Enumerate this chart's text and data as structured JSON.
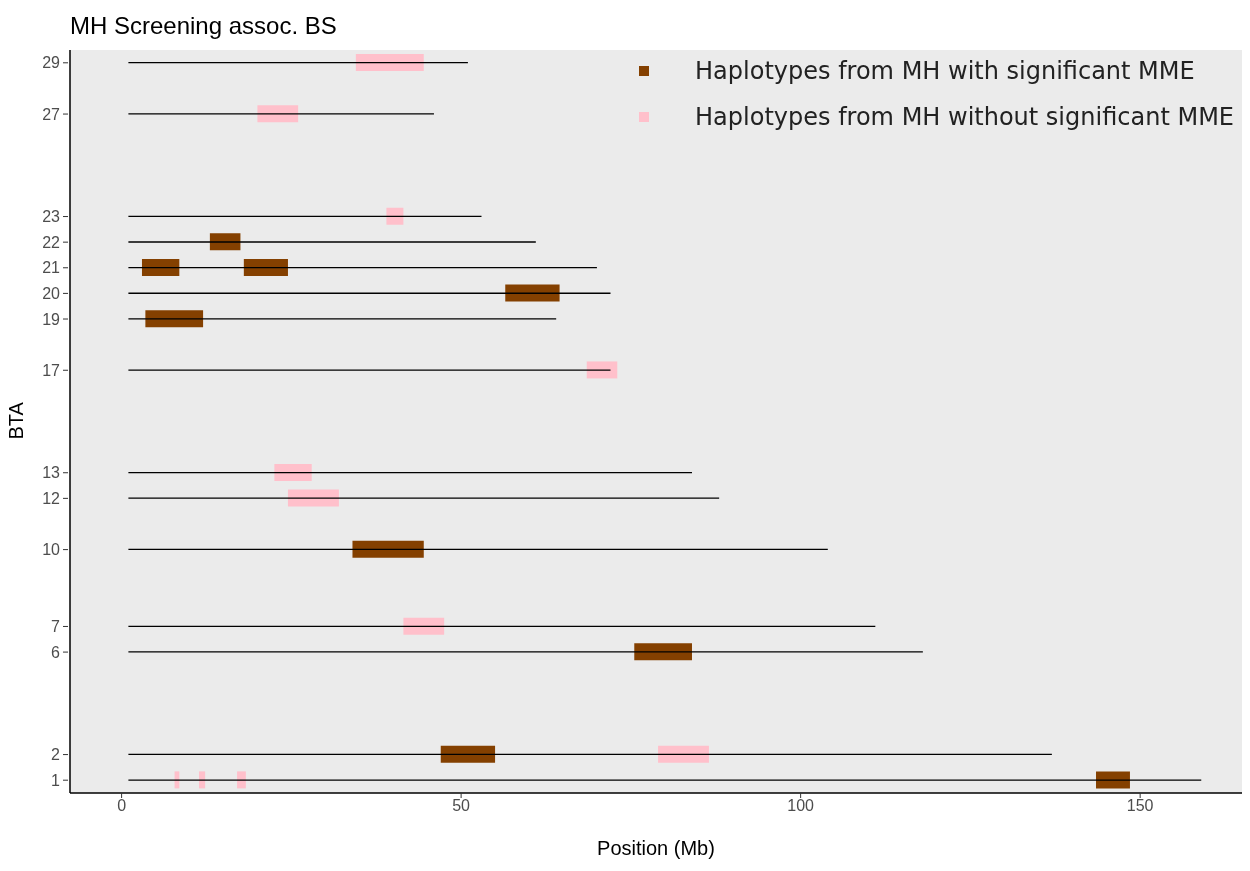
{
  "chart_data": {
    "type": "bar",
    "orientation": "horizontal",
    "title": "MH Screening assoc. BS",
    "xlabel": "Position (Mb)",
    "ylabel": "BTA",
    "categories": [
      "29",
      null,
      "27",
      null,
      null,
      null,
      "23",
      "22",
      "21",
      "20",
      "19",
      null,
      "17",
      null,
      null,
      null,
      "13",
      "12",
      null,
      "10",
      null,
      null,
      "7",
      "6",
      null,
      null,
      null,
      "2",
      "1"
    ],
    "series": [
      {
        "color": "#000000",
        "base": [
          1,
          null,
          1,
          null,
          null,
          null,
          1,
          1,
          1,
          1,
          1,
          null,
          1,
          null,
          null,
          null,
          1,
          1,
          null,
          1,
          null,
          null,
          1,
          1,
          null,
          null,
          null,
          1,
          1
        ],
        "values": [
          50,
          null,
          45,
          null,
          null,
          null,
          52,
          60,
          69,
          71,
          63,
          null,
          71,
          null,
          null,
          null,
          83,
          87,
          null,
          103,
          null,
          null,
          110,
          117,
          null,
          null,
          null,
          136,
          158
        ]
      },
      {
        "name": "Haplotypes from MH with significant MME",
        "color": "#844000",
        "base": [
          null,
          null,
          null,
          null,
          null,
          null,
          null,
          13,
          3,
          56.5,
          3.5,
          null,
          null,
          null,
          null,
          null,
          null,
          null,
          null,
          34,
          null,
          null,
          null,
          75.5,
          null,
          null,
          null,
          47,
          143.5
        ],
        "values": [
          null,
          null,
          null,
          null,
          null,
          null,
          null,
          4.5,
          5.5,
          8,
          8.5,
          null,
          null,
          null,
          null,
          null,
          null,
          null,
          null,
          10.5,
          null,
          null,
          null,
          8.5,
          null,
          null,
          null,
          8,
          5
        ]
      },
      {
        "color": "#844000",
        "base": [
          null,
          null,
          null,
          null,
          null,
          null,
          null,
          null,
          18,
          null,
          null,
          null,
          null,
          null,
          null,
          null,
          null,
          null,
          null,
          null,
          null,
          null,
          null,
          null,
          null,
          null,
          null,
          null,
          null
        ],
        "values": [
          null,
          null,
          null,
          null,
          null,
          null,
          null,
          null,
          6.5,
          null,
          null,
          null,
          null,
          null,
          null,
          null,
          null,
          null,
          null,
          null,
          null,
          null,
          null,
          null,
          null,
          null,
          null,
          null,
          null
        ]
      },
      {
        "name": "Haplotypes from MH without significant MME",
        "color": "#ffc0cb",
        "base": [
          34.5,
          null,
          20,
          null,
          null,
          null,
          39,
          null,
          null,
          null,
          null,
          null,
          68.5,
          null,
          null,
          null,
          22.5,
          24.5,
          null,
          null,
          null,
          null,
          41.5,
          null,
          null,
          null,
          null,
          79,
          7.8
        ],
        "values": [
          10,
          null,
          6,
          null,
          null,
          null,
          2.5,
          null,
          null,
          null,
          null,
          null,
          4.5,
          null,
          null,
          null,
          5.5,
          7.5,
          null,
          null,
          null,
          null,
          6,
          null,
          null,
          null,
          null,
          7.5,
          0.7
        ]
      },
      {
        "color": "#ffc0cb",
        "base": [
          null,
          null,
          null,
          null,
          null,
          null,
          null,
          null,
          null,
          null,
          null,
          null,
          null,
          null,
          null,
          null,
          null,
          null,
          null,
          null,
          null,
          null,
          null,
          null,
          null,
          null,
          null,
          null,
          11.4
        ],
        "values": [
          null,
          null,
          null,
          null,
          null,
          null,
          null,
          null,
          null,
          null,
          null,
          null,
          null,
          null,
          null,
          null,
          null,
          null,
          null,
          null,
          null,
          null,
          null,
          null,
          null,
          null,
          null,
          null,
          0.9
        ]
      },
      {
        "color": "#ffc0cb",
        "base": [
          null,
          null,
          null,
          null,
          null,
          null,
          null,
          null,
          null,
          null,
          null,
          null,
          null,
          null,
          null,
          null,
          null,
          null,
          null,
          null,
          null,
          null,
          null,
          null,
          null,
          null,
          null,
          null,
          17
        ],
        "values": [
          null,
          null,
          null,
          null,
          null,
          null,
          null,
          null,
          null,
          null,
          null,
          null,
          null,
          null,
          null,
          null,
          null,
          null,
          null,
          null,
          null,
          null,
          null,
          null,
          null,
          null,
          null,
          null,
          1.3
        ]
      }
    ],
    "xlim": [
      -7.6,
      165
    ],
    "xticks": [
      0,
      50,
      100,
      150
    ],
    "legend": "top right"
  }
}
